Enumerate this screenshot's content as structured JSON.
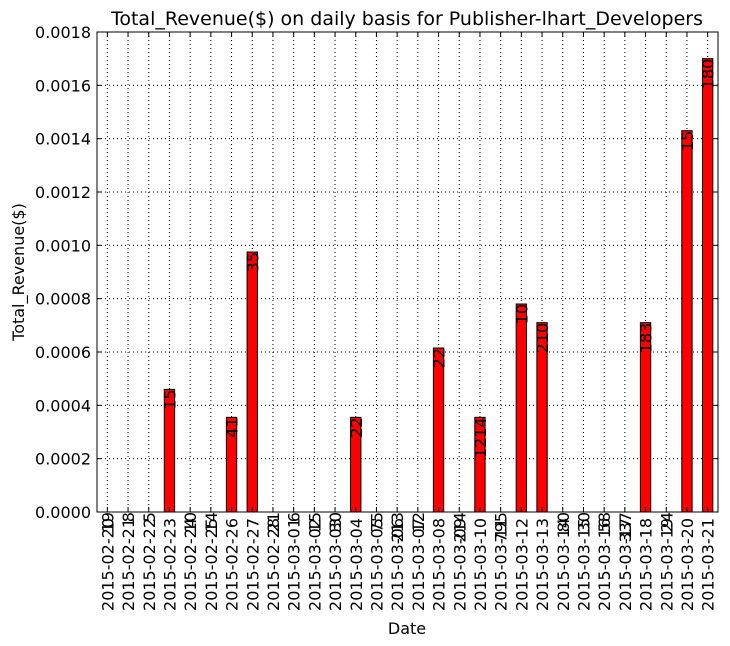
{
  "chart_data": {
    "type": "bar",
    "title": "Total_Revenue($) on daily basis for Publisher-lhart_Developers",
    "xlabel": "Date",
    "ylabel": "Total_Revenue($)",
    "ylim": [
      0,
      0.0018
    ],
    "yticks": [
      "0.0000",
      "0.0002",
      "0.0004",
      "0.0006",
      "0.0008",
      "0.0010",
      "0.0012",
      "0.0014",
      "0.0016",
      "0.0018"
    ],
    "grid": true,
    "bar_color": "#ff0000",
    "categories": [
      "2015-02-20",
      "2015-02-21",
      "2015-02-22",
      "2015-02-23",
      "2015-02-24",
      "2015-02-25",
      "2015-02-26",
      "2015-02-27",
      "2015-02-28",
      "2015-03-01",
      "2015-03-02",
      "2015-03-03",
      "2015-03-04",
      "2015-03-05",
      "2015-03-06",
      "2015-03-07",
      "2015-03-08",
      "2015-03-09",
      "2015-03-10",
      "2015-03-11",
      "2015-03-12",
      "2015-03-13",
      "2015-03-14",
      "2015-03-15",
      "2015-03-16",
      "2015-03-17",
      "2015-03-18",
      "2015-03-19",
      "2015-03-20",
      "2015-03-21"
    ],
    "values": [
      0,
      0,
      0,
      0.00046,
      0,
      0,
      0.000355,
      0.000975,
      0,
      0,
      0,
      0,
      0.000355,
      0,
      0,
      0,
      0.000615,
      0,
      0.000355,
      0,
      0.00078,
      0.00071,
      0,
      0,
      0,
      0,
      0.00071,
      0,
      0.00143,
      0.0017
    ],
    "bar_labels": [
      "19",
      "8",
      "5",
      "15",
      "10",
      "14",
      "41",
      "35",
      "21",
      "6",
      "15",
      "30",
      "22",
      "75",
      "213",
      "12",
      "22",
      "214",
      "1214",
      "795",
      "10",
      "210",
      "80",
      "30",
      "58",
      "337",
      "183",
      "24",
      "15",
      "180"
    ]
  }
}
